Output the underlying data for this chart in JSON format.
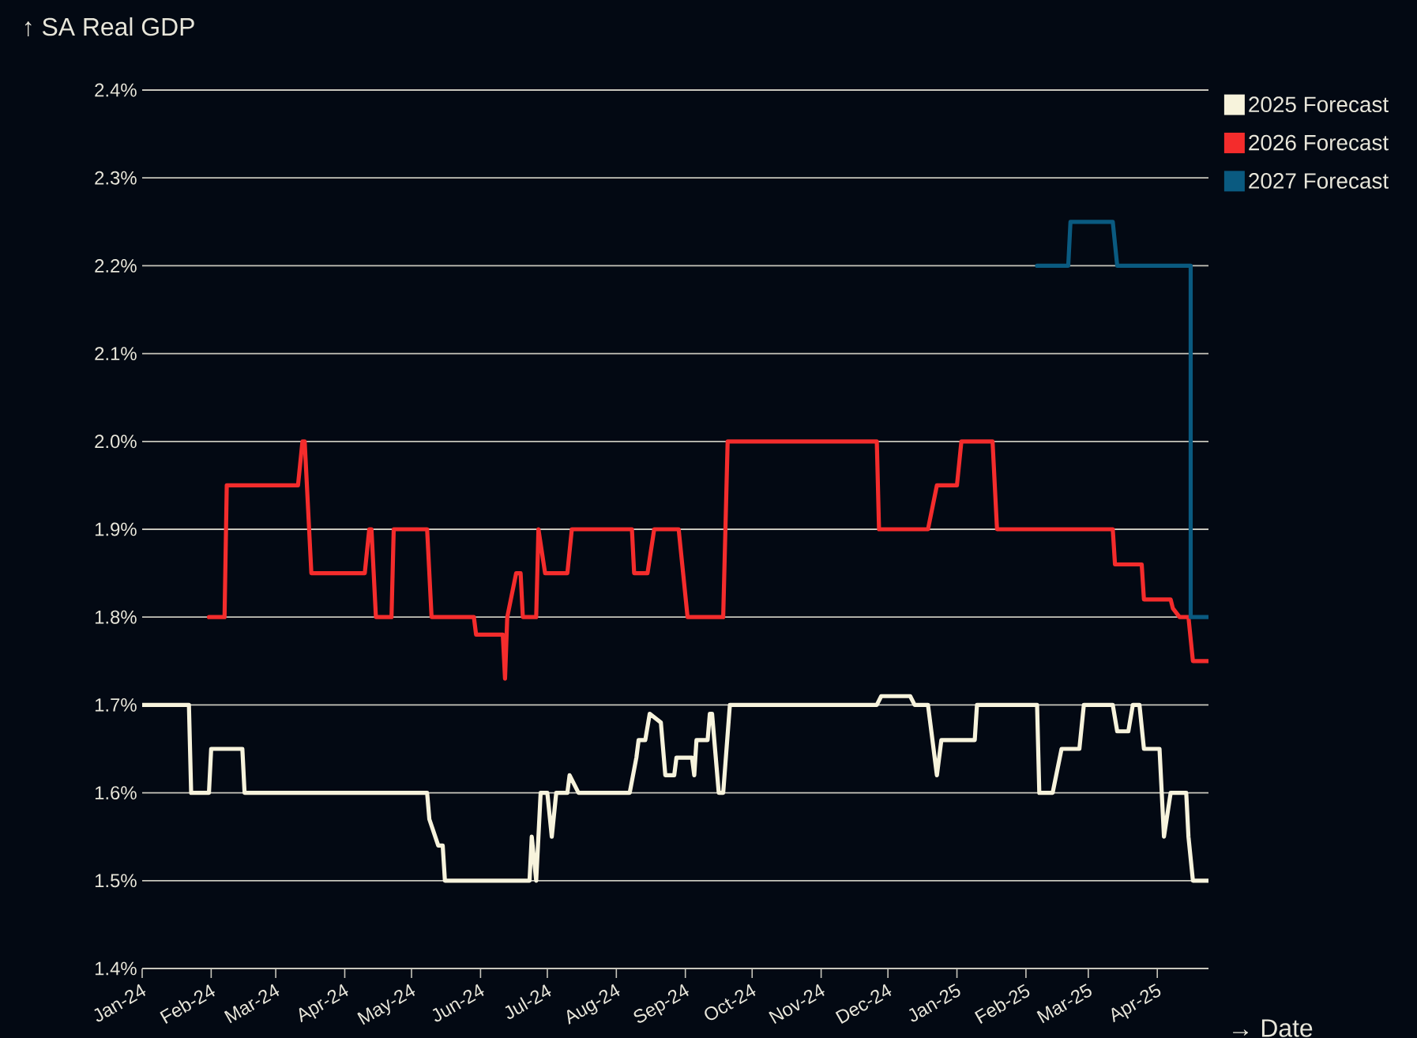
{
  "chart_data": {
    "type": "line",
    "ylabel": "↑ SA Real GDP",
    "xlabel": "→ Date",
    "xlim": [
      "2024-01-01",
      "2025-04-24"
    ],
    "ylim": [
      1.4,
      2.4
    ],
    "xticks": [
      {
        "value": "2024-01-01",
        "label": "Jan-24"
      },
      {
        "value": "2024-02-01",
        "label": "Feb-24"
      },
      {
        "value": "2024-03-01",
        "label": "Mar-24"
      },
      {
        "value": "2024-04-01",
        "label": "Apr-24"
      },
      {
        "value": "2024-05-01",
        "label": "May-24"
      },
      {
        "value": "2024-06-01",
        "label": "Jun-24"
      },
      {
        "value": "2024-07-01",
        "label": "Jul-24"
      },
      {
        "value": "2024-08-01",
        "label": "Aug-24"
      },
      {
        "value": "2024-09-01",
        "label": "Sep-24"
      },
      {
        "value": "2024-10-01",
        "label": "Oct-24"
      },
      {
        "value": "2024-11-01",
        "label": "Nov-24"
      },
      {
        "value": "2024-12-01",
        "label": "Dec-24"
      },
      {
        "value": "2025-01-01",
        "label": "Jan-25"
      },
      {
        "value": "2025-02-01",
        "label": "Feb-25"
      },
      {
        "value": "2025-03-01",
        "label": "Mar-25"
      },
      {
        "value": "2025-04-01",
        "label": "Apr-25"
      }
    ],
    "yticks": [
      {
        "value": 1.4,
        "label": "1.4%"
      },
      {
        "value": 1.5,
        "label": "1.5%"
      },
      {
        "value": 1.6,
        "label": "1.6%"
      },
      {
        "value": 1.7,
        "label": "1.7%"
      },
      {
        "value": 1.8,
        "label": "1.8%"
      },
      {
        "value": 1.9,
        "label": "1.9%"
      },
      {
        "value": 2.0,
        "label": "2.0%"
      },
      {
        "value": 2.1,
        "label": "2.1%"
      },
      {
        "value": 2.2,
        "label": "2.2%"
      },
      {
        "value": 2.3,
        "label": "2.3%"
      },
      {
        "value": 2.4,
        "label": "2.4%"
      }
    ],
    "grid": "y",
    "legend": "top right",
    "series": [
      {
        "name": "2025 Forecast",
        "color": "#f7f3dc",
        "x": [
          "2024-01-01",
          "2024-01-22",
          "2024-01-23",
          "2024-01-31",
          "2024-02-01",
          "2024-02-15",
          "2024-02-16",
          "2024-05-08",
          "2024-05-09",
          "2024-05-13",
          "2024-05-15",
          "2024-05-16",
          "2024-06-23",
          "2024-06-24",
          "2024-06-26",
          "2024-06-28",
          "2024-07-01",
          "2024-07-03",
          "2024-07-05",
          "2024-07-10",
          "2024-07-11",
          "2024-07-15",
          "2024-08-07",
          "2024-08-10",
          "2024-08-11",
          "2024-08-14",
          "2024-08-16",
          "2024-08-21",
          "2024-08-23",
          "2024-08-27",
          "2024-08-28",
          "2024-09-04",
          "2024-09-05",
          "2024-09-06",
          "2024-09-11",
          "2024-09-12",
          "2024-09-13",
          "2024-09-16",
          "2024-09-18",
          "2024-09-21",
          "2024-11-26",
          "2024-11-28",
          "2024-12-11",
          "2024-12-13",
          "2024-12-19",
          "2024-12-23",
          "2024-12-25",
          "2025-01-09",
          "2025-01-10",
          "2025-02-06",
          "2025-02-07",
          "2025-02-13",
          "2025-02-17",
          "2025-02-25",
          "2025-02-27",
          "2025-03-12",
          "2025-03-14",
          "2025-03-19",
          "2025-03-21",
          "2025-03-24",
          "2025-03-26",
          "2025-04-02",
          "2025-04-04",
          "2025-04-07",
          "2025-04-14",
          "2025-04-15",
          "2025-04-17",
          "2025-04-24"
        ],
        "values": [
          1.7,
          1.7,
          1.6,
          1.6,
          1.65,
          1.65,
          1.6,
          1.6,
          1.57,
          1.54,
          1.54,
          1.5,
          1.5,
          1.55,
          1.5,
          1.6,
          1.6,
          1.55,
          1.6,
          1.6,
          1.62,
          1.6,
          1.6,
          1.64,
          1.66,
          1.66,
          1.69,
          1.68,
          1.62,
          1.62,
          1.64,
          1.64,
          1.62,
          1.66,
          1.66,
          1.69,
          1.69,
          1.6,
          1.6,
          1.7,
          1.7,
          1.71,
          1.71,
          1.7,
          1.7,
          1.62,
          1.66,
          1.66,
          1.7,
          1.7,
          1.6,
          1.6,
          1.65,
          1.65,
          1.7,
          1.7,
          1.67,
          1.67,
          1.7,
          1.7,
          1.65,
          1.65,
          1.55,
          1.6,
          1.6,
          1.55,
          1.5,
          1.5
        ]
      },
      {
        "name": "2026 Forecast",
        "color": "#f42c2c",
        "x": [
          "2024-01-31",
          "2024-02-07",
          "2024-02-08",
          "2024-03-11",
          "2024-03-13",
          "2024-03-14",
          "2024-03-17",
          "2024-04-10",
          "2024-04-12",
          "2024-04-13",
          "2024-04-15",
          "2024-04-22",
          "2024-04-23",
          "2024-05-08",
          "2024-05-10",
          "2024-05-29",
          "2024-05-30",
          "2024-06-11",
          "2024-06-12",
          "2024-06-13",
          "2024-06-17",
          "2024-06-19",
          "2024-06-20",
          "2024-06-26",
          "2024-06-27",
          "2024-06-30",
          "2024-07-10",
          "2024-07-12",
          "2024-08-08",
          "2024-08-09",
          "2024-08-15",
          "2024-08-18",
          "2024-08-29",
          "2024-09-02",
          "2024-09-18",
          "2024-09-20",
          "2024-11-26",
          "2024-11-27",
          "2024-12-19",
          "2024-12-23",
          "2025-01-01",
          "2025-01-03",
          "2025-01-17",
          "2025-01-19",
          "2025-03-12",
          "2025-03-13",
          "2025-03-25",
          "2025-03-26",
          "2025-04-07",
          "2025-04-08",
          "2025-04-11",
          "2025-04-15",
          "2025-04-17",
          "2025-04-24"
        ],
        "values": [
          1.8,
          1.8,
          1.95,
          1.95,
          2.0,
          2.0,
          1.85,
          1.85,
          1.9,
          1.9,
          1.8,
          1.8,
          1.9,
          1.9,
          1.8,
          1.8,
          1.78,
          1.78,
          1.73,
          1.8,
          1.85,
          1.85,
          1.8,
          1.8,
          1.9,
          1.85,
          1.85,
          1.9,
          1.9,
          1.85,
          1.85,
          1.9,
          1.9,
          1.8,
          1.8,
          2.0,
          2.0,
          1.9,
          1.9,
          1.95,
          1.95,
          2.0,
          2.0,
          1.9,
          1.9,
          1.86,
          1.86,
          1.82,
          1.82,
          1.81,
          1.8,
          1.8,
          1.75,
          1.75
        ]
      },
      {
        "name": "2027 Forecast",
        "color": "#0a5a80",
        "x": [
          "2025-02-06",
          "2025-02-20",
          "2025-02-21",
          "2025-03-12",
          "2025-03-14",
          "2025-04-16",
          "2025-04-16",
          "2025-04-24"
        ],
        "values": [
          2.2,
          2.2,
          2.25,
          2.25,
          2.2,
          2.2,
          1.8,
          1.8
        ]
      }
    ]
  }
}
